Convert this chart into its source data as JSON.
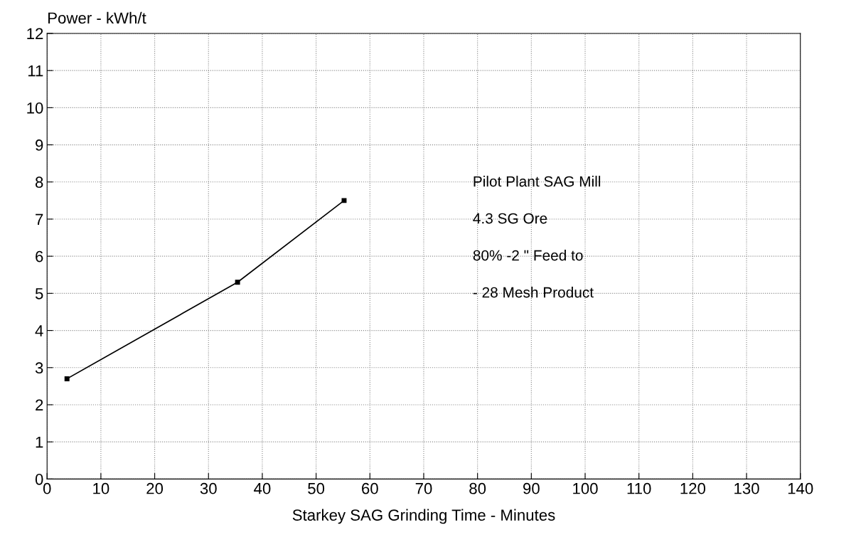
{
  "chart_data": {
    "type": "line",
    "xlabel": "Starkey SAG Grinding Time - Minutes",
    "ylabel": "Power - kWh/t",
    "x": [
      3.7,
      35.4,
      55.2
    ],
    "series": [
      {
        "color": "#000000",
        "values": [
          2.7,
          5.3,
          7.5
        ]
      }
    ],
    "xlim": [
      0,
      140
    ],
    "xticks": [
      0,
      10,
      20,
      30,
      40,
      50,
      60,
      70,
      80,
      90,
      100,
      110,
      120,
      130,
      140
    ],
    "ylim": [
      0,
      12
    ],
    "yticks": [
      0,
      1,
      2,
      3,
      4,
      5,
      6,
      7,
      8,
      9,
      10,
      11,
      12
    ],
    "grid": true,
    "marker": "square",
    "line_style": "solid",
    "annotations": [
      "Pilot Plant SAG Mill",
      "4.3 SG Ore",
      "80% -2 \" Feed to",
      "- 28 Mesh Product"
    ]
  }
}
